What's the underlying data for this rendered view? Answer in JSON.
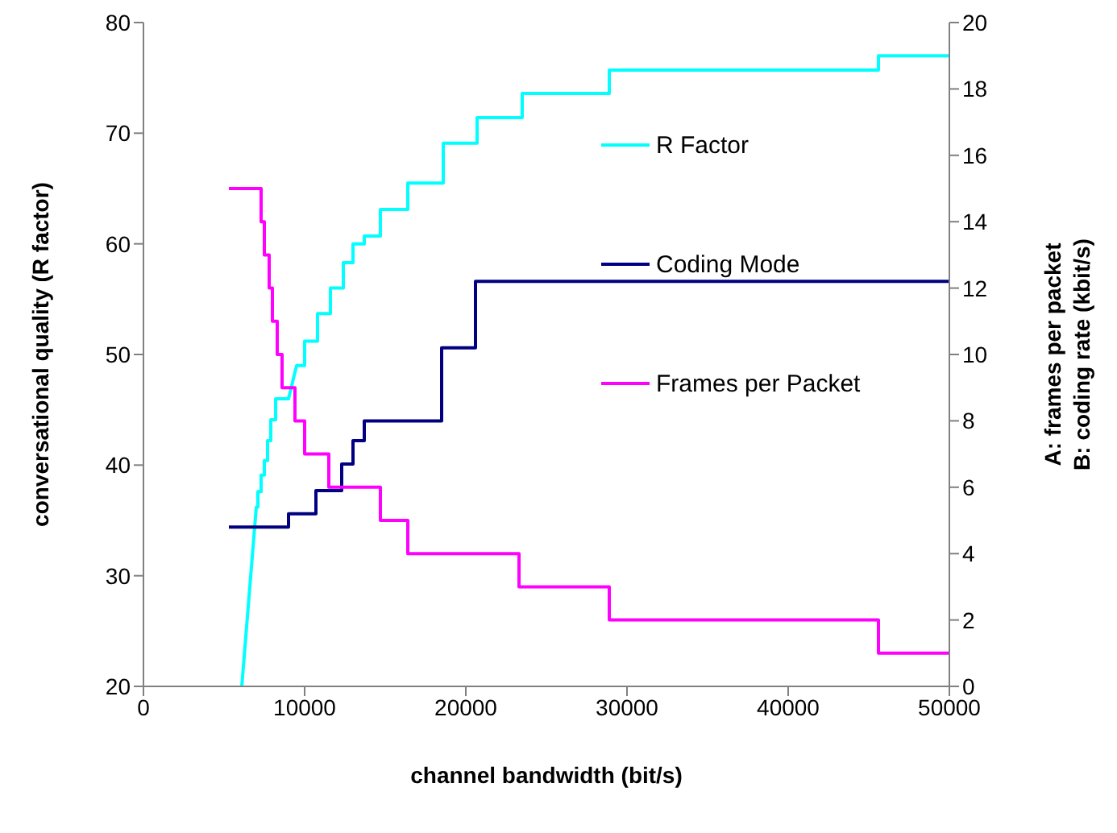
{
  "chart_data": {
    "type": "line",
    "xlabel": "channel bandwidth (bit/s)",
    "ylabel": "conversational quality (R factor)",
    "y2label": "A: frames per packet\nB: coding rate (kbit/s)",
    "xlim": [
      0,
      50000
    ],
    "xticks": [
      0,
      10000,
      20000,
      30000,
      40000,
      50000
    ],
    "ylim": [
      20,
      80
    ],
    "yticks": [
      20,
      30,
      40,
      50,
      60,
      70,
      80
    ],
    "y2lim": [
      0,
      20
    ],
    "y2ticks": [
      0,
      2,
      4,
      6,
      8,
      10,
      12,
      14,
      16,
      18,
      20
    ],
    "grid": false,
    "legend": "right",
    "marker": "none",
    "line_style": "solid",
    "series": [
      {
        "name": "R Factor",
        "color": "#00ffff",
        "x": [
          6100,
          7000,
          7100,
          7100,
          7300,
          7300,
          7500,
          7500,
          7700,
          7700,
          7900,
          7900,
          8200,
          8200,
          9000,
          9500,
          10000,
          10000,
          10800,
          10800,
          11600,
          11600,
          12400,
          12400,
          13000,
          13000,
          13700,
          13700,
          14700,
          14700,
          16400,
          16400,
          18600,
          18600,
          20700,
          20700,
          23500,
          23500,
          28900,
          28900,
          45600,
          45600,
          50000
        ],
        "values": [
          20,
          36.2,
          36.2,
          37.6,
          37.6,
          39.1,
          39.1,
          40.4,
          40.4,
          42.2,
          42.2,
          44.1,
          44.1,
          46,
          46,
          49,
          49,
          51.2,
          51.2,
          53.7,
          53.7,
          56,
          56,
          58.3,
          58.3,
          60,
          60,
          60.7,
          60.7,
          63.1,
          63.1,
          65.5,
          65.5,
          69.1,
          69.1,
          71.4,
          71.4,
          73.6,
          73.6,
          75.7,
          75.7,
          77,
          77
        ]
      },
      {
        "name": "Coding Mode",
        "type": "step",
        "axis": "y2",
        "color": "#000080",
        "x": [
          5300,
          9000,
          10700,
          12300,
          13000,
          13700,
          18500,
          20600,
          50000
        ],
        "values": [
          4.8,
          5.2,
          5.9,
          6.7,
          7.4,
          8,
          10.2,
          12.2,
          12.2
        ]
      },
      {
        "name": "Frames per Packet",
        "type": "step",
        "axis": "y2",
        "color": "#ff00ff",
        "x": [
          5300,
          7300,
          7500,
          7800,
          8000,
          8300,
          8600,
          9400,
          10000,
          11500,
          14700,
          16400,
          23300,
          28900,
          45600,
          50000
        ],
        "values": [
          15,
          14,
          13,
          12,
          11,
          10,
          9,
          8,
          7,
          6,
          5,
          4,
          3,
          2,
          1,
          1
        ]
      }
    ]
  }
}
